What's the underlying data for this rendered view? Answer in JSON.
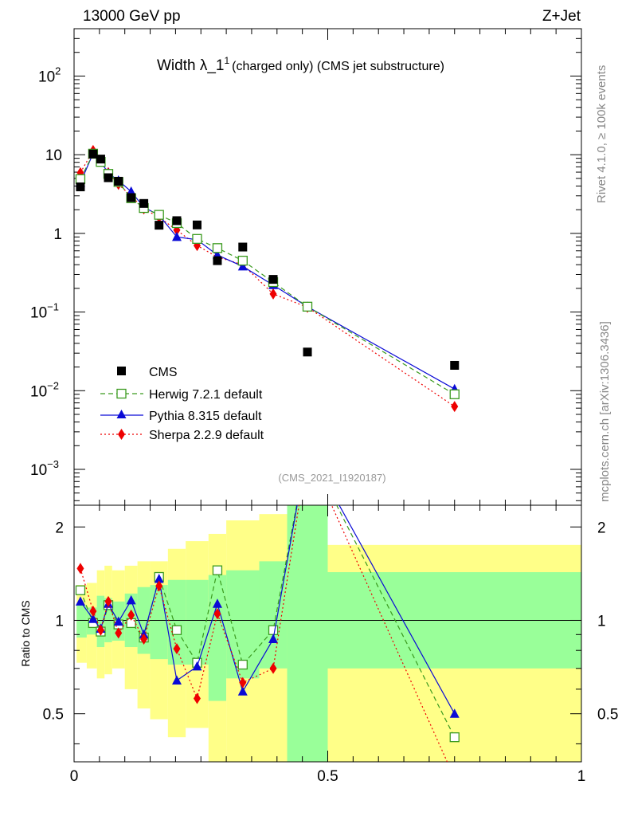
{
  "header": {
    "left": "13000 GeV pp",
    "right": "Z+Jet"
  },
  "side_labels": {
    "rivet": "Rivet 4.1.0, ≥ 100k events",
    "mcplots": "mcplots.cern.ch [arXiv:1306.3436]"
  },
  "title": {
    "main": "Width λ_1",
    "sup": "1",
    "suffix": "(charged only) (CMS jet substructure)"
  },
  "watermark": "(CMS_2021_I1920187)",
  "colors": {
    "cms": "#000000",
    "herwig": "#3a9a1e",
    "pythia": "#0a0ad6",
    "sherpa": "#ee0000",
    "band_inner": "#99ff99",
    "band_outer": "#ffff88"
  },
  "chart_data": [
    {
      "type": "scatter",
      "panel": "main",
      "yscale": "log",
      "xlim": [
        0,
        1
      ],
      "ylim": [
        0.00035,
        400
      ],
      "ytick_labels": [
        {
          "value": 0.001,
          "base": "10",
          "exp": "−3"
        },
        {
          "value": 0.01,
          "base": "10",
          "exp": "−2"
        },
        {
          "value": 0.1,
          "base": "10",
          "exp": "−1"
        },
        {
          "value": 1,
          "base": "1",
          "exp": ""
        },
        {
          "value": 10,
          "base": "10",
          "exp": ""
        },
        {
          "value": 100,
          "base": "10",
          "exp": "2"
        }
      ],
      "legend": [
        "CMS",
        "Herwig 7.2.1 default",
        "Pythia 8.315 default",
        "Sherpa 2.2.9 default"
      ],
      "series": [
        {
          "name": "CMS",
          "style": "square",
          "x": [
            0.0125,
            0.0375,
            0.0525,
            0.0675,
            0.0875,
            0.1125,
            0.1375,
            0.1675,
            0.2025,
            0.2425,
            0.2825,
            0.3325,
            0.3925,
            0.46,
            0.75
          ],
          "y": [
            3.9,
            10.2,
            8.8,
            5.1,
            4.6,
            2.85,
            2.4,
            1.27,
            1.45,
            1.28,
            0.45,
            0.67,
            0.26,
            0.031,
            0.021
          ]
        },
        {
          "name": "Herwig 7.2.1 default",
          "style": "open-square",
          "dash": "6,4",
          "x": [
            0.0125,
            0.0375,
            0.0525,
            0.0675,
            0.0875,
            0.1125,
            0.1375,
            0.1675,
            0.2025,
            0.2425,
            0.2825,
            0.3325,
            0.3925,
            0.46,
            0.75
          ],
          "y": [
            4.9,
            10.3,
            8.1,
            5.7,
            4.5,
            2.8,
            2.1,
            1.72,
            1.35,
            0.85,
            0.65,
            0.45,
            0.24,
            0.117,
            0.009
          ]
        },
        {
          "name": "Pythia 8.315 default",
          "style": "triangle",
          "dash": "",
          "x": [
            0.0125,
            0.0375,
            0.0525,
            0.0675,
            0.0875,
            0.1125,
            0.1375,
            0.1675,
            0.2025,
            0.2425,
            0.2825,
            0.3325,
            0.3925,
            0.46,
            0.75
          ],
          "y": [
            4.4,
            10.4,
            8.2,
            5.8,
            4.7,
            3.4,
            2.15,
            1.7,
            0.9,
            0.83,
            0.53,
            0.38,
            0.22,
            0.117,
            0.0105
          ]
        },
        {
          "name": "Sherpa 2.2.9 default",
          "style": "diamond",
          "dash": "2,3",
          "x": [
            0.0125,
            0.0375,
            0.0525,
            0.0675,
            0.0875,
            0.1125,
            0.1375,
            0.1675,
            0.2025,
            0.2425,
            0.2825,
            0.3325,
            0.3925,
            0.46,
            0.75
          ],
          "y": [
            5.9,
            11.3,
            8.3,
            5.9,
            4.2,
            3.0,
            2.05,
            1.6,
            1.1,
            0.7,
            0.5,
            0.4,
            0.17,
            0.115,
            0.0063
          ]
        }
      ]
    },
    {
      "type": "line",
      "panel": "ratio",
      "ylabel": "Ratio to CMS",
      "xlim": [
        0,
        1
      ],
      "ylim": [
        0.35,
        2.35
      ],
      "yticks": [
        0.5,
        1,
        2
      ],
      "ytick_labels": [
        "0.5",
        "1",
        "2"
      ],
      "xticks": [
        0,
        0.5,
        1
      ],
      "xtick_labels": [
        "0",
        "0.5",
        "1"
      ],
      "bands": [
        {
          "xlo": 0.005,
          "xhi": 0.025,
          "inner": [
            0.88,
            1.12
          ],
          "outer": [
            0.73,
            1.3
          ]
        },
        {
          "xlo": 0.025,
          "xhi": 0.045,
          "inner": [
            0.9,
            1.1
          ],
          "outer": [
            0.7,
            1.32
          ]
        },
        {
          "xlo": 0.045,
          "xhi": 0.06,
          "inner": [
            0.82,
            1.2
          ],
          "outer": [
            0.65,
            1.45
          ]
        },
        {
          "xlo": 0.06,
          "xhi": 0.075,
          "inner": [
            0.85,
            1.18
          ],
          "outer": [
            0.67,
            1.5
          ]
        },
        {
          "xlo": 0.075,
          "xhi": 0.1,
          "inner": [
            0.86,
            1.15
          ],
          "outer": [
            0.7,
            1.45
          ]
        },
        {
          "xlo": 0.1,
          "xhi": 0.125,
          "inner": [
            0.82,
            1.22
          ],
          "outer": [
            0.6,
            1.5
          ]
        },
        {
          "xlo": 0.125,
          "xhi": 0.15,
          "inner": [
            0.78,
            1.28
          ],
          "outer": [
            0.52,
            1.55
          ]
        },
        {
          "xlo": 0.15,
          "xhi": 0.185,
          "inner": [
            0.75,
            1.3
          ],
          "outer": [
            0.48,
            1.55
          ]
        },
        {
          "xlo": 0.185,
          "xhi": 0.22,
          "inner": [
            0.72,
            1.35
          ],
          "outer": [
            0.42,
            1.7
          ]
        },
        {
          "xlo": 0.22,
          "xhi": 0.265,
          "inner": [
            0.72,
            1.35
          ],
          "outer": [
            0.45,
            1.8
          ]
        },
        {
          "xlo": 0.265,
          "xhi": 0.3,
          "inner": [
            0.55,
            1.4
          ],
          "outer": [
            0.35,
            1.9
          ]
        },
        {
          "xlo": 0.3,
          "xhi": 0.365,
          "inner": [
            0.65,
            1.45
          ],
          "outer": [
            0.35,
            2.1
          ]
        },
        {
          "xlo": 0.365,
          "xhi": 0.42,
          "inner": [
            0.7,
            1.55
          ],
          "outer": [
            0.35,
            2.2
          ]
        },
        {
          "xlo": 0.42,
          "xhi": 0.5,
          "inner": [
            0.35,
            2.35
          ],
          "outer": [
            0.35,
            2.35
          ]
        },
        {
          "xlo": 0.5,
          "xhi": 1.0,
          "inner": [
            0.7,
            1.43
          ],
          "outer": [
            0.35,
            1.75
          ]
        }
      ],
      "series": [
        {
          "name": "Herwig 7.2.1 default",
          "x": [
            0.0125,
            0.0375,
            0.0525,
            0.0675,
            0.0875,
            0.1125,
            0.1375,
            0.1675,
            0.2025,
            0.2425,
            0.2825,
            0.3325,
            0.3925,
            0.46,
            0.75
          ],
          "y": [
            1.25,
            0.98,
            0.92,
            1.12,
            0.97,
            0.98,
            0.88,
            1.38,
            0.93,
            0.73,
            1.45,
            0.72,
            0.93,
            3.6,
            0.42
          ]
        },
        {
          "name": "Pythia 8.315 default",
          "x": [
            0.0125,
            0.0375,
            0.0525,
            0.0675,
            0.0875,
            0.1125,
            0.1375,
            0.1675,
            0.2025,
            0.2425,
            0.2825,
            0.3325,
            0.3925,
            0.46,
            0.75
          ],
          "y": [
            1.15,
            1.01,
            0.94,
            1.13,
            0.99,
            1.16,
            0.9,
            1.36,
            0.64,
            0.71,
            1.13,
            0.59,
            0.87,
            3.6,
            0.5
          ]
        },
        {
          "name": "Sherpa 2.2.9 default",
          "x": [
            0.0125,
            0.0375,
            0.0525,
            0.0675,
            0.0875,
            0.1125,
            0.1375,
            0.1675,
            0.2025,
            0.2425,
            0.2825,
            0.3325,
            0.3925,
            0.46,
            0.75
          ],
          "y": [
            1.47,
            1.07,
            0.93,
            1.15,
            0.91,
            1.04,
            0.87,
            1.29,
            0.81,
            0.56,
            1.05,
            0.63,
            0.7,
            3.5,
            0.31
          ]
        }
      ]
    }
  ]
}
